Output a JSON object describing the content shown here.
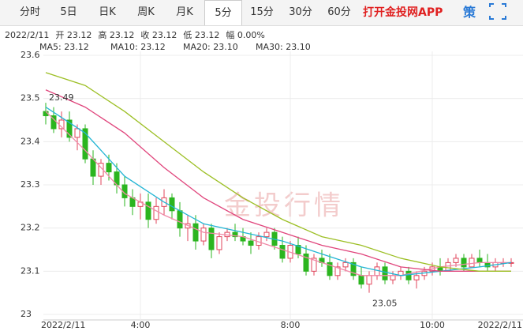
{
  "tabs": [
    "分时",
    "5日",
    "日K",
    "周K",
    "月K",
    "5分",
    "15分",
    "30分",
    "60分"
  ],
  "active_tab": 5,
  "app_link": "打开金投网APP",
  "strategy_icon": "策",
  "chart_data": {
    "type": "candlestick",
    "info": [
      "2022/2/11",
      "开 23.12",
      "高 23.12",
      "收 23.12",
      "低 23.12",
      "幅 0.00%"
    ],
    "watermark": "金投行情",
    "up_color": "#e0455b",
    "down_color": "#2bb51f",
    "open": [
      23.47,
      23.46,
      23.43,
      23.45,
      23.41,
      23.43,
      23.36,
      23.32,
      23.35,
      23.33,
      23.3,
      23.27,
      23.25,
      23.26,
      23.22,
      23.25,
      23.27,
      23.24,
      23.2,
      23.21,
      23.17,
      23.2,
      23.15,
      23.18,
      23.19,
      23.18,
      23.17,
      23.16,
      23.18,
      23.19,
      23.16,
      23.13,
      23.16,
      23.14,
      23.1,
      23.13,
      23.12,
      23.09,
      23.11,
      23.12,
      23.09,
      23.07,
      23.09,
      23.11,
      23.08,
      23.09,
      23.1,
      23.08,
      23.09,
      23.1,
      23.11,
      23.1,
      23.12,
      23.13,
      23.11,
      23.13,
      23.12,
      23.11,
      23.12,
      23.12
    ],
    "high": [
      23.49,
      23.48,
      23.47,
      23.47,
      23.44,
      23.44,
      23.38,
      23.36,
      23.37,
      23.35,
      23.32,
      23.29,
      23.28,
      23.28,
      23.27,
      23.29,
      23.28,
      23.26,
      23.23,
      23.23,
      23.21,
      23.21,
      23.19,
      23.2,
      23.21,
      23.2,
      23.19,
      23.19,
      23.2,
      23.2,
      23.18,
      23.17,
      23.18,
      23.16,
      23.14,
      23.15,
      23.14,
      23.12,
      23.13,
      23.13,
      23.11,
      23.1,
      23.12,
      23.12,
      23.1,
      23.11,
      23.11,
      23.1,
      23.11,
      23.12,
      23.13,
      23.13,
      23.14,
      23.14,
      23.14,
      23.15,
      23.14,
      23.13,
      23.13,
      23.13
    ],
    "low": [
      23.44,
      23.42,
      23.41,
      23.4,
      23.38,
      23.35,
      23.3,
      23.3,
      23.31,
      23.28,
      23.25,
      23.23,
      23.22,
      23.2,
      23.21,
      23.23,
      23.22,
      23.18,
      23.17,
      23.15,
      23.16,
      23.13,
      23.14,
      23.17,
      23.17,
      23.16,
      23.14,
      23.15,
      23.17,
      23.15,
      23.12,
      23.12,
      23.13,
      23.09,
      23.09,
      23.11,
      23.08,
      23.08,
      23.1,
      23.08,
      23.06,
      23.05,
      23.08,
      23.07,
      23.07,
      23.08,
      23.07,
      23.06,
      23.08,
      23.09,
      23.09,
      23.1,
      23.11,
      23.1,
      23.11,
      23.11,
      23.1,
      23.1,
      23.11,
      23.11
    ],
    "close": [
      23.46,
      23.43,
      23.45,
      23.41,
      23.43,
      23.36,
      23.32,
      23.35,
      23.33,
      23.3,
      23.27,
      23.25,
      23.26,
      23.22,
      23.25,
      23.27,
      23.24,
      23.2,
      23.21,
      23.17,
      23.2,
      23.15,
      23.18,
      23.19,
      23.18,
      23.17,
      23.16,
      23.18,
      23.19,
      23.16,
      23.13,
      23.16,
      23.14,
      23.1,
      23.13,
      23.12,
      23.09,
      23.11,
      23.12,
      23.09,
      23.07,
      23.09,
      23.11,
      23.08,
      23.09,
      23.1,
      23.08,
      23.09,
      23.1,
      23.11,
      23.1,
      23.12,
      23.13,
      23.11,
      23.13,
      23.12,
      23.11,
      23.12,
      23.12,
      23.12
    ],
    "annotations": [
      {
        "label": "23.49",
        "x": 0,
        "value": 23.49
      },
      {
        "label": "23.05",
        "x": 41,
        "value": 23.05
      }
    ],
    "ma_x": [
      0,
      5,
      10,
      15,
      20,
      25,
      30,
      35,
      40,
      45,
      50,
      55,
      59
    ],
    "series": [
      {
        "name": "MA5: 23.12",
        "color": "#f08aa8",
        "values": [
          23.47,
          23.38,
          23.28,
          23.23,
          23.19,
          23.18,
          23.15,
          23.12,
          23.09,
          23.09,
          23.11,
          23.12,
          23.12
        ]
      },
      {
        "name": "MA10: 23.12",
        "color": "#22b5d4",
        "values": [
          23.48,
          23.42,
          23.32,
          23.26,
          23.21,
          23.19,
          23.17,
          23.14,
          23.11,
          23.09,
          23.1,
          23.11,
          23.12
        ]
      },
      {
        "name": "MA20: 23.10",
        "color": "#e0457c",
        "values": [
          23.52,
          23.48,
          23.42,
          23.34,
          23.27,
          23.22,
          23.19,
          23.16,
          23.14,
          23.11,
          23.1,
          23.1,
          23.1
        ]
      },
      {
        "name": "MA30: 23.10",
        "color": "#9cbf24",
        "values": [
          23.56,
          23.53,
          23.47,
          23.4,
          23.33,
          23.27,
          23.22,
          23.18,
          23.16,
          23.13,
          23.11,
          23.1,
          23.1
        ]
      }
    ],
    "xlim": [
      0,
      59
    ],
    "xticks": [
      {
        "value": 0,
        "label": "2022/2/11"
      },
      {
        "value": 12,
        "label": "4:00"
      },
      {
        "value": 31,
        "label": "8:00"
      },
      {
        "value": 49,
        "label": "10:00"
      },
      {
        "value": 59,
        "label": "2022/2/11"
      }
    ],
    "ylim": [
      23,
      23.6
    ],
    "yticks": [
      23,
      23.1,
      23.2,
      23.3,
      23.4,
      23.5,
      23.6
    ],
    "grid": true
  }
}
